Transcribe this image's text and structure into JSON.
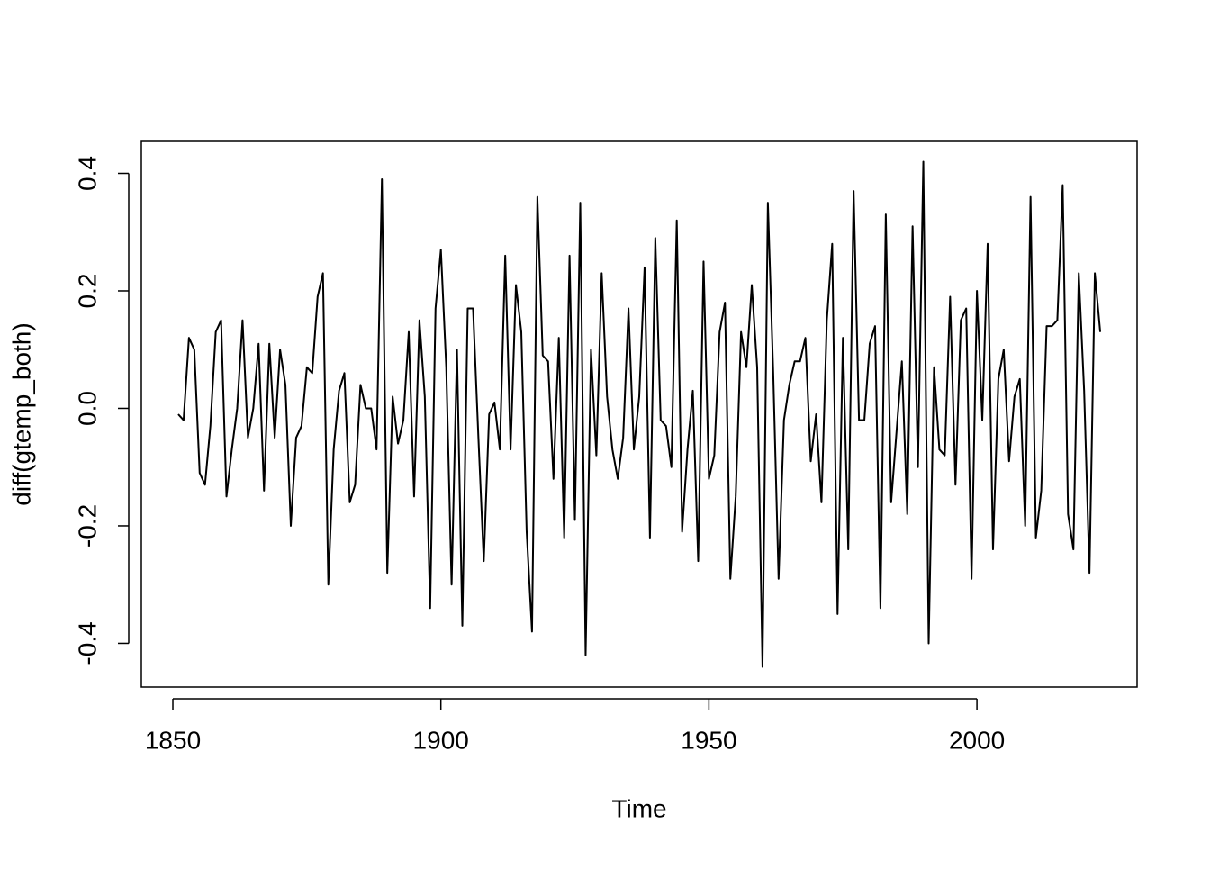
{
  "chart_data": {
    "type": "line",
    "xlabel": "Time",
    "ylabel": "diff(gtemp_both)",
    "x": [
      1851,
      1852,
      1853,
      1854,
      1855,
      1856,
      1857,
      1858,
      1859,
      1860,
      1861,
      1862,
      1863,
      1864,
      1865,
      1866,
      1867,
      1868,
      1869,
      1870,
      1871,
      1872,
      1873,
      1874,
      1875,
      1876,
      1877,
      1878,
      1879,
      1880,
      1881,
      1882,
      1883,
      1884,
      1885,
      1886,
      1887,
      1888,
      1889,
      1890,
      1891,
      1892,
      1893,
      1894,
      1895,
      1896,
      1897,
      1898,
      1899,
      1900,
      1901,
      1902,
      1903,
      1904,
      1905,
      1906,
      1907,
      1908,
      1909,
      1910,
      1911,
      1912,
      1913,
      1914,
      1915,
      1916,
      1917,
      1918,
      1919,
      1920,
      1921,
      1922,
      1923,
      1924,
      1925,
      1926,
      1927,
      1928,
      1929,
      1930,
      1931,
      1932,
      1933,
      1934,
      1935,
      1936,
      1937,
      1938,
      1939,
      1940,
      1941,
      1942,
      1943,
      1944,
      1945,
      1946,
      1947,
      1948,
      1949,
      1950,
      1951,
      1952,
      1953,
      1954,
      1955,
      1956,
      1957,
      1958,
      1959,
      1960,
      1961,
      1962,
      1963,
      1964,
      1965,
      1966,
      1967,
      1968,
      1969,
      1970,
      1971,
      1972,
      1973,
      1974,
      1975,
      1976,
      1977,
      1978,
      1979,
      1980,
      1981,
      1982,
      1983,
      1984,
      1985,
      1986,
      1987,
      1988,
      1989,
      1990,
      1991,
      1992,
      1993,
      1994,
      1995,
      1996,
      1997,
      1998,
      1999,
      2000,
      2001,
      2002,
      2003,
      2004,
      2005,
      2006,
      2007,
      2008,
      2009,
      2010,
      2011,
      2012,
      2013,
      2014,
      2015,
      2016,
      2017,
      2018,
      2019,
      2020,
      2021,
      2022,
      2023
    ],
    "values": [
      -0.01,
      -0.02,
      0.12,
      0.1,
      -0.11,
      -0.13,
      -0.03,
      0.13,
      0.15,
      -0.15,
      -0.07,
      0.0,
      0.15,
      -0.05,
      0.0,
      0.11,
      -0.14,
      0.11,
      -0.05,
      0.1,
      0.04,
      -0.2,
      -0.05,
      -0.03,
      0.07,
      0.06,
      0.19,
      0.23,
      -0.3,
      -0.07,
      0.03,
      0.06,
      -0.16,
      -0.13,
      0.04,
      0.0,
      0.0,
      -0.07,
      0.39,
      -0.28,
      0.02,
      -0.06,
      -0.02,
      0.13,
      -0.15,
      0.15,
      0.02,
      -0.34,
      0.17,
      0.27,
      0.07,
      -0.3,
      0.1,
      -0.37,
      0.17,
      0.17,
      -0.05,
      -0.26,
      -0.01,
      0.01,
      -0.07,
      0.26,
      -0.07,
      0.21,
      0.13,
      -0.21,
      -0.38,
      0.36,
      0.09,
      0.08,
      -0.12,
      0.12,
      -0.22,
      0.26,
      -0.19,
      0.35,
      -0.42,
      0.1,
      -0.08,
      0.23,
      0.02,
      -0.07,
      -0.12,
      -0.05,
      0.17,
      -0.07,
      0.02,
      0.24,
      -0.22,
      0.29,
      -0.02,
      -0.03,
      -0.1,
      0.32,
      -0.21,
      -0.07,
      0.03,
      -0.26,
      0.25,
      -0.12,
      -0.08,
      0.13,
      0.18,
      -0.29,
      -0.15,
      0.13,
      0.07,
      0.21,
      0.07,
      -0.44,
      0.35,
      0.06,
      -0.29,
      -0.02,
      0.04,
      0.08,
      0.08,
      0.12,
      -0.09,
      -0.01,
      -0.16,
      0.15,
      0.28,
      -0.35,
      0.12,
      -0.24,
      0.37,
      -0.02,
      -0.02,
      0.11,
      0.14,
      -0.34,
      0.33,
      -0.16,
      -0.04,
      0.08,
      -0.18,
      0.31,
      -0.1,
      0.42,
      -0.4,
      0.07,
      -0.07,
      -0.08,
      0.19,
      -0.13,
      0.15,
      0.17,
      -0.29,
      0.2,
      -0.02,
      0.28,
      -0.24,
      0.05,
      0.1,
      -0.09,
      0.02,
      0.05,
      -0.2,
      0.36,
      -0.22,
      -0.14,
      0.14,
      0.14,
      0.15,
      0.38,
      -0.18,
      -0.24,
      0.23,
      0.03,
      -0.28,
      0.23,
      0.13
    ],
    "color": "#000000",
    "xlim": [
      1844.12,
      2029.88
    ],
    "ylim": [
      -0.4744,
      0.4544
    ],
    "xticks": [
      1850,
      1900,
      1950,
      2000
    ],
    "yticks": [
      -0.4,
      -0.2,
      {
        "value": 0,
        "label": "0.0"
      },
      0.2,
      0.4
    ]
  }
}
